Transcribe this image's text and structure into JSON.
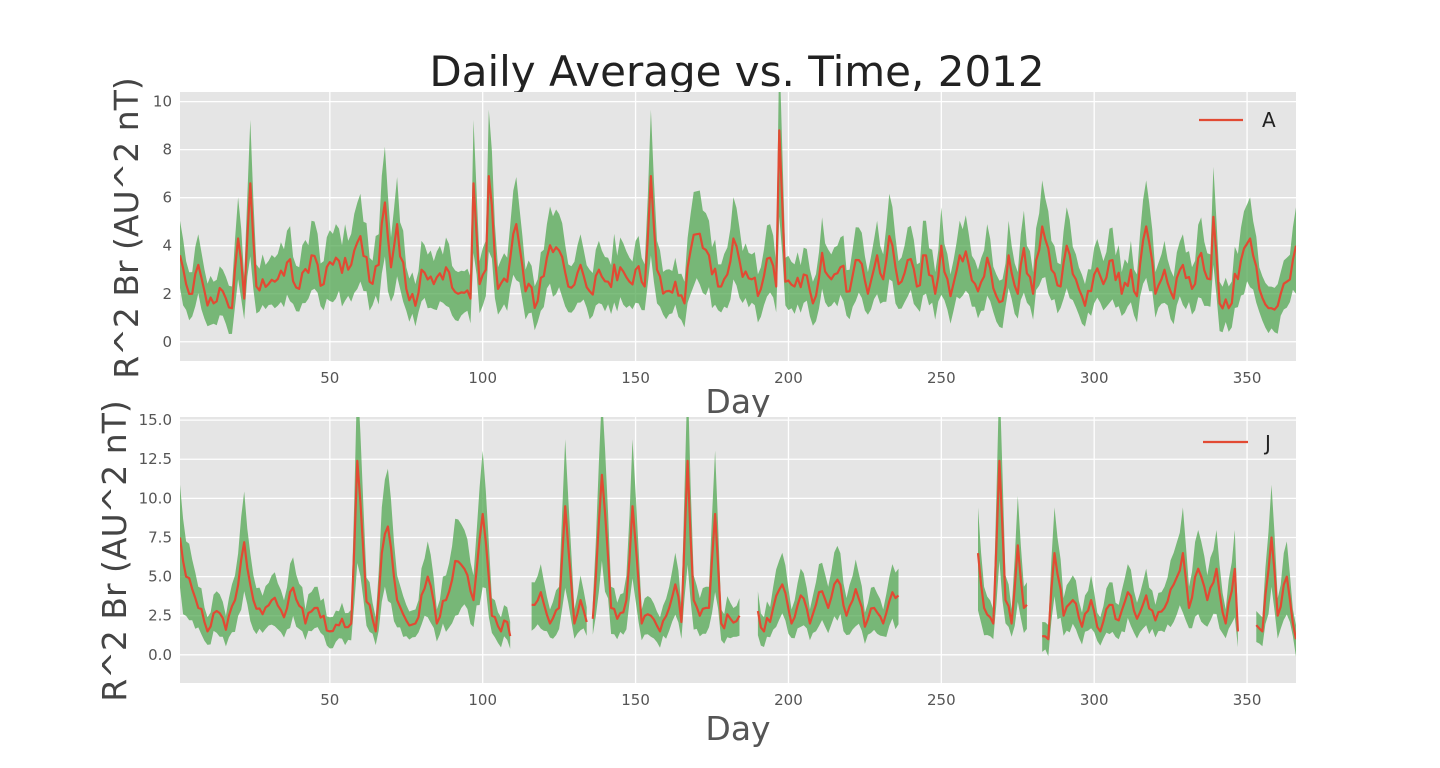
{
  "chart_data": {
    "type": "line",
    "title": "Daily Average vs. Time, 2012",
    "colors": {
      "line": "#e24a33",
      "band": "#4ca54c",
      "axes_bg": "#e5e5e5",
      "grid": "#ffffff"
    },
    "grid": true,
    "legend_placement": "top-right",
    "panels": [
      {
        "series_name": "A",
        "xlabel": "Day",
        "ylabel": "R^2 Br (AU^2 nT)",
        "xlim": [
          1,
          366
        ],
        "ylim": [
          -0.8,
          10.4
        ],
        "xticks": [
          50,
          100,
          150,
          200,
          250,
          300,
          350
        ],
        "yticks": [
          0,
          2,
          4,
          6,
          8,
          10
        ],
        "ytick_labels": [
          "0",
          "2",
          "4",
          "6",
          "8",
          "10"
        ],
        "band_halfwidth_ratio": 0.4,
        "keypoints": [
          [
            1,
            3.6
          ],
          [
            3,
            2.4
          ],
          [
            5,
            2.0
          ],
          [
            7,
            3.2
          ],
          [
            9,
            2.1
          ],
          [
            12,
            1.6
          ],
          [
            15,
            2.1
          ],
          [
            18,
            1.4
          ],
          [
            20,
            4.3
          ],
          [
            22,
            1.8
          ],
          [
            24,
            6.6
          ],
          [
            26,
            2.3
          ],
          [
            28,
            2.6
          ],
          [
            32,
            2.5
          ],
          [
            36,
            3.3
          ],
          [
            40,
            2.2
          ],
          [
            44,
            3.6
          ],
          [
            48,
            2.4
          ],
          [
            52,
            3.5
          ],
          [
            56,
            3.0
          ],
          [
            60,
            4.4
          ],
          [
            63,
            2.5
          ],
          [
            66,
            3.2
          ],
          [
            68,
            5.8
          ],
          [
            70,
            3.1
          ],
          [
            72,
            4.9
          ],
          [
            75,
            2.2
          ],
          [
            78,
            1.5
          ],
          [
            80,
            3.0
          ],
          [
            84,
            2.4
          ],
          [
            88,
            3.1
          ],
          [
            92,
            2.0
          ],
          [
            96,
            1.8
          ],
          [
            97,
            6.6
          ],
          [
            99,
            2.4
          ],
          [
            101,
            3.0
          ],
          [
            102,
            6.9
          ],
          [
            105,
            2.2
          ],
          [
            108,
            2.5
          ],
          [
            111,
            4.9
          ],
          [
            114,
            2.1
          ],
          [
            118,
            1.7
          ],
          [
            121,
            3.5
          ],
          [
            125,
            3.8
          ],
          [
            128,
            2.3
          ],
          [
            132,
            3.2
          ],
          [
            135,
            2.1
          ],
          [
            138,
            3.0
          ],
          [
            141,
            2.5
          ],
          [
            145,
            3.1
          ],
          [
            148,
            2.5
          ],
          [
            150,
            3.0
          ],
          [
            153,
            2.3
          ],
          [
            155,
            6.9
          ],
          [
            157,
            3.0
          ],
          [
            160,
            2.1
          ],
          [
            163,
            2.5
          ],
          [
            166,
            1.6
          ],
          [
            168,
            3.8
          ],
          [
            171,
            4.5
          ],
          [
            174,
            3.6
          ],
          [
            177,
            2.3
          ],
          [
            180,
            2.8
          ],
          [
            182,
            4.3
          ],
          [
            185,
            2.7
          ],
          [
            188,
            2.6
          ],
          [
            191,
            2.2
          ],
          [
            194,
            3.5
          ],
          [
            196,
            2.3
          ],
          [
            197,
            8.8
          ],
          [
            199,
            2.5
          ],
          [
            202,
            2.3
          ],
          [
            205,
            2.8
          ],
          [
            208,
            1.6
          ],
          [
            211,
            3.7
          ],
          [
            214,
            2.6
          ],
          [
            217,
            3.1
          ],
          [
            220,
            2.1
          ],
          [
            223,
            3.4
          ],
          [
            226,
            2.0
          ],
          [
            229,
            3.6
          ],
          [
            231,
            2.6
          ],
          [
            233,
            4.4
          ],
          [
            236,
            2.4
          ],
          [
            239,
            3.4
          ],
          [
            242,
            2.3
          ],
          [
            245,
            3.6
          ],
          [
            248,
            2.0
          ],
          [
            250,
            4.0
          ],
          [
            253,
            1.9
          ],
          [
            256,
            3.6
          ],
          [
            259,
            3.2
          ],
          [
            262,
            2.1
          ],
          [
            265,
            3.5
          ],
          [
            268,
            1.9
          ],
          [
            270,
            1.7
          ],
          [
            272,
            3.6
          ],
          [
            275,
            2.0
          ],
          [
            277,
            3.9
          ],
          [
            280,
            2.0
          ],
          [
            283,
            4.8
          ],
          [
            286,
            3.0
          ],
          [
            289,
            2.3
          ],
          [
            291,
            4.0
          ],
          [
            294,
            2.6
          ],
          [
            297,
            1.5
          ],
          [
            300,
            2.8
          ],
          [
            303,
            2.4
          ],
          [
            306,
            3.4
          ],
          [
            309,
            2.0
          ],
          [
            312,
            3.0
          ],
          [
            314,
            1.9
          ],
          [
            317,
            4.8
          ],
          [
            320,
            2.0
          ],
          [
            323,
            3.0
          ],
          [
            326,
            1.8
          ],
          [
            329,
            3.2
          ],
          [
            332,
            2.2
          ],
          [
            335,
            3.7
          ],
          [
            338,
            2.6
          ],
          [
            339,
            5.2
          ],
          [
            341,
            1.6
          ],
          [
            344,
            1.4
          ],
          [
            348,
            3.4
          ],
          [
            351,
            4.3
          ],
          [
            354,
            2.2
          ],
          [
            357,
            1.4
          ],
          [
            360,
            1.5
          ],
          [
            363,
            2.5
          ],
          [
            366,
            4.0
          ]
        ]
      },
      {
        "series_name": "J",
        "xlabel": "Day",
        "ylabel": "R^2 Br (AU^2 nT)",
        "xlim": [
          1,
          366
        ],
        "ylim": [
          -1.8,
          15.2
        ],
        "xticks": [
          50,
          100,
          150,
          200,
          250,
          300,
          350
        ],
        "yticks": [
          0,
          2.5,
          5,
          7.5,
          10,
          12.5,
          15
        ],
        "ytick_labels": [
          "0.0",
          "2.5",
          "5.0",
          "7.5",
          "10.0",
          "12.5",
          "15.0"
        ],
        "band_halfwidth_ratio": 0.45,
        "segments": [
          [
            [
              1,
              7.5
            ],
            [
              3,
              5.0
            ],
            [
              5,
              4.2
            ],
            [
              7,
              3.0
            ],
            [
              10,
              1.5
            ],
            [
              13,
              2.8
            ],
            [
              16,
              1.6
            ],
            [
              19,
              3.5
            ],
            [
              22,
              7.2
            ],
            [
              25,
              3.5
            ],
            [
              28,
              2.6
            ],
            [
              31,
              3.5
            ],
            [
              35,
              2.4
            ],
            [
              38,
              4.3
            ],
            [
              42,
              2.0
            ],
            [
              46,
              3.0
            ],
            [
              50,
              1.5
            ],
            [
              54,
              2.3
            ],
            [
              57,
              2.0
            ],
            [
              59,
              12.4
            ],
            [
              62,
              3.4
            ],
            [
              65,
              1.5
            ],
            [
              67,
              6.5
            ],
            [
              69,
              8.2
            ],
            [
              72,
              3.5
            ],
            [
              75,
              2.2
            ],
            [
              78,
              2.0
            ],
            [
              82,
              5.0
            ],
            [
              85,
              2.0
            ],
            [
              88,
              3.5
            ],
            [
              91,
              6.0
            ],
            [
              94,
              5.5
            ],
            [
              97,
              3.5
            ],
            [
              100,
              9.0
            ],
            [
              103,
              2.5
            ],
            [
              106,
              1.5
            ],
            [
              108,
              2.1
            ],
            [
              109,
              1.2
            ]
          ],
          [
            [
              116,
              3.2
            ],
            [
              119,
              4.0
            ],
            [
              122,
              2.0
            ],
            [
              125,
              3.0
            ],
            [
              127,
              9.5
            ],
            [
              130,
              2.0
            ],
            [
              132,
              3.5
            ],
            [
              134,
              2.1
            ]
          ],
          [
            [
              136,
              2.3
            ],
            [
              139,
              11.5
            ],
            [
              142,
              3.0
            ],
            [
              144,
              2.3
            ],
            [
              147,
              3.5
            ],
            [
              149,
              9.5
            ],
            [
              152,
              2.0
            ],
            [
              155,
              2.5
            ],
            [
              158,
              1.5
            ],
            [
              161,
              3.0
            ],
            [
              163,
              4.5
            ],
            [
              165,
              2.1
            ],
            [
              167,
              12.4
            ],
            [
              169,
              3.5
            ],
            [
              171,
              2.5
            ],
            [
              174,
              3.0
            ],
            [
              176,
              9.0
            ],
            [
              178,
              2.0
            ],
            [
              181,
              2.3
            ],
            [
              184,
              2.5
            ]
          ],
          [
            [
              190,
              2.8
            ],
            [
              192,
              1.5
            ],
            [
              195,
              3.0
            ],
            [
              198,
              4.5
            ],
            [
              201,
              2.0
            ],
            [
              204,
              3.8
            ],
            [
              207,
              2.0
            ],
            [
              210,
              4.0
            ],
            [
              213,
              3.0
            ],
            [
              216,
              4.8
            ],
            [
              219,
              2.5
            ],
            [
              222,
              4.2
            ],
            [
              225,
              1.8
            ],
            [
              228,
              3.0
            ],
            [
              231,
              2.0
            ],
            [
              234,
              4.0
            ],
            [
              236,
              3.8
            ]
          ],
          [
            [
              262,
              6.5
            ],
            [
              264,
              3.0
            ],
            [
              267,
              2.0
            ],
            [
              269,
              12.4
            ],
            [
              271,
              3.5
            ],
            [
              273,
              2.0
            ],
            [
              275,
              7.0
            ],
            [
              277,
              3.0
            ],
            [
              278,
              3.2
            ]
          ],
          [
            [
              283,
              1.2
            ],
            [
              285,
              1.0
            ],
            [
              287,
              6.5
            ],
            [
              290,
              2.5
            ],
            [
              293,
              3.5
            ],
            [
              296,
              1.8
            ],
            [
              299,
              3.5
            ],
            [
              302,
              1.5
            ],
            [
              305,
              3.2
            ],
            [
              308,
              2.2
            ],
            [
              311,
              4.0
            ],
            [
              314,
              2.3
            ],
            [
              317,
              3.8
            ],
            [
              320,
              2.2
            ],
            [
              323,
              3.0
            ],
            [
              326,
              4.5
            ],
            [
              329,
              6.5
            ],
            [
              331,
              3.0
            ],
            [
              334,
              5.5
            ],
            [
              337,
              3.5
            ],
            [
              340,
              5.5
            ],
            [
              343,
              2.0
            ],
            [
              346,
              5.5
            ],
            [
              347,
              1.5
            ]
          ],
          [
            [
              353,
              1.9
            ],
            [
              355,
              1.5
            ],
            [
              358,
              7.5
            ],
            [
              360,
              2.5
            ],
            [
              363,
              5.0
            ],
            [
              366,
              1.0
            ]
          ]
        ]
      }
    ]
  }
}
